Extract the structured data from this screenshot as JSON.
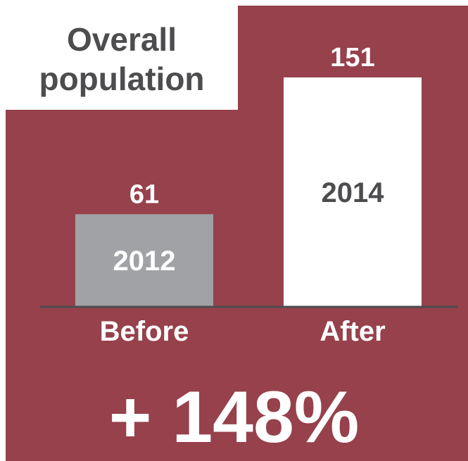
{
  "chart_data": {
    "type": "bar",
    "title": "Overall population",
    "categories": [
      "Before",
      "After"
    ],
    "years": [
      "2012",
      "2014"
    ],
    "values": [
      61,
      151
    ],
    "change_label": "+ 148%",
    "colors": {
      "panel": "#96414b",
      "before_bar": "#a1a2a5",
      "after_bar": "#ffffff",
      "axis": "#4d4d4f",
      "dark_text": "#4d4d4f",
      "light_text": "#ffffff"
    }
  }
}
